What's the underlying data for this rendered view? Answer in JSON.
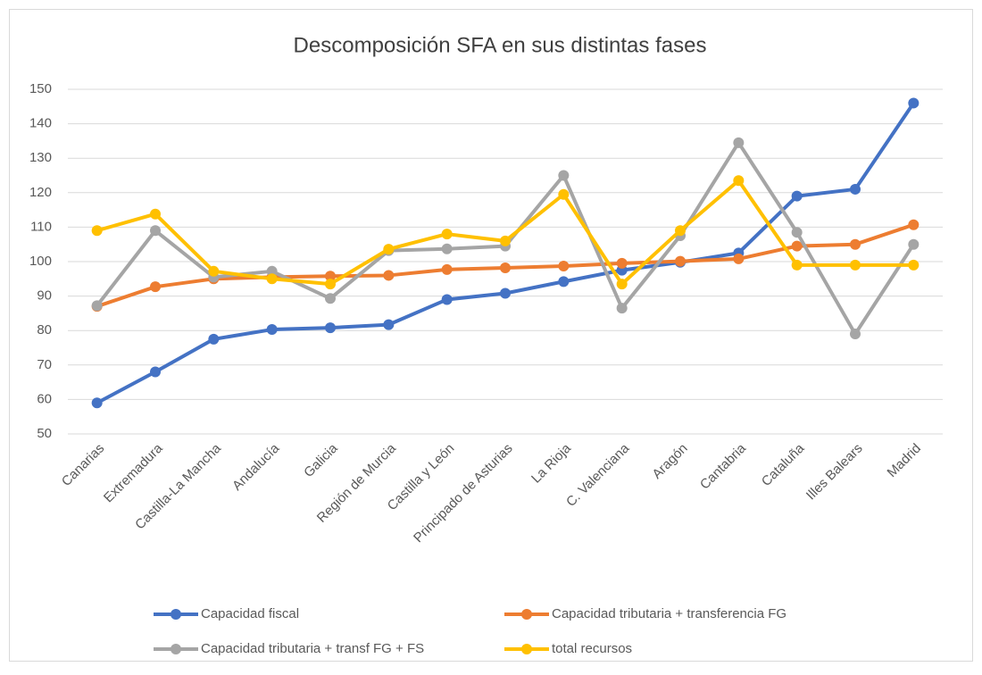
{
  "chart_data": {
    "type": "line",
    "title": "Descomposición SFA en sus distintas fases",
    "categories": [
      "Canarias",
      "Extremadura",
      "Castilla-La Mancha",
      "Andalucía",
      "Galicia",
      "Región de Murcia",
      "Castilla y León",
      "Principado de Asturias",
      "La Rioja",
      "C. Valenciana",
      "Aragón",
      "Cantabria",
      "Cataluña",
      "Illes Balears",
      "Madrid"
    ],
    "series": [
      {
        "name": "Capacidad fiscal",
        "color": "#4472c4",
        "values": [
          59,
          68,
          77.5,
          80.3,
          80.8,
          81.7,
          89,
          90.8,
          94.2,
          97.5,
          99.8,
          102.5,
          119,
          121,
          146
        ]
      },
      {
        "name": "Capacidad tributaria + transferencia FG",
        "color": "#ed7d31",
        "values": [
          87,
          92.7,
          95,
          95.5,
          95.8,
          96,
          97.7,
          98.2,
          98.7,
          99.5,
          100.1,
          100.8,
          104.5,
          105,
          110.7
        ]
      },
      {
        "name": "Capacidad tributaria + transf FG + FS",
        "color": "#a5a5a5",
        "values": [
          87.2,
          109,
          95.5,
          97.2,
          89.3,
          103.2,
          103.7,
          104.5,
          125,
          86.5,
          107.5,
          134.5,
          108.5,
          79,
          105
        ]
      },
      {
        "name": "total recursos",
        "color": "#ffc000",
        "values": [
          109,
          113.8,
          97.2,
          95,
          93.5,
          103.6,
          108,
          106,
          119.5,
          93.5,
          109,
          123.5,
          99,
          99,
          99
        ]
      }
    ],
    "ylim": [
      50,
      150
    ],
    "yticks": [
      50,
      60,
      70,
      80,
      90,
      100,
      110,
      120,
      130,
      140,
      150
    ],
    "grid": true,
    "legend": "bottom"
  }
}
